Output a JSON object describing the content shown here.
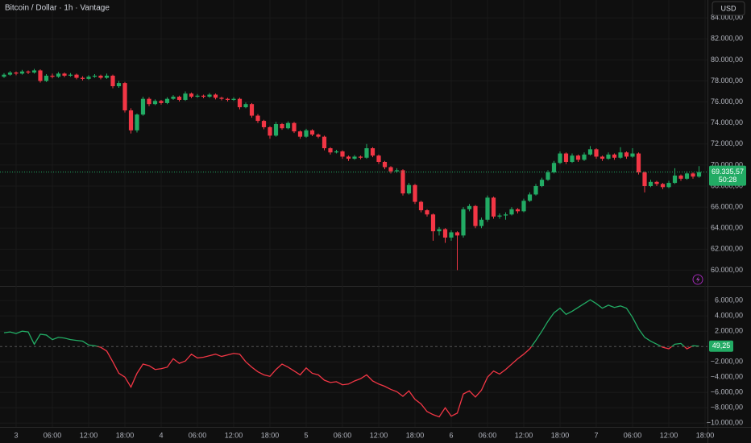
{
  "chart_data": [
    {
      "type": "candlestick",
      "title": "Bitcoin / Dollar · 1h · Vantage",
      "currency": "USD",
      "up_color": "#22ab64",
      "down_color": "#f23645",
      "grid": true,
      "ylim": [
        58500,
        85700
      ],
      "yticks": [
        {
          "value": 60000,
          "label": "60.000,00"
        },
        {
          "value": 62000,
          "label": "62.000,00"
        },
        {
          "value": 64000,
          "label": "64.000,00"
        },
        {
          "value": 66000,
          "label": "66.000,00"
        },
        {
          "value": 68000,
          "label": "68.000,00"
        },
        {
          "value": 70000,
          "label": "70.000,00"
        },
        {
          "value": 72000,
          "label": "72.000,00"
        },
        {
          "value": 74000,
          "label": "74.000,00"
        },
        {
          "value": 76000,
          "label": "76.000,00"
        },
        {
          "value": 78000,
          "label": "78.000,00"
        },
        {
          "value": 80000,
          "label": "80.000,00"
        },
        {
          "value": 82000,
          "label": "82.000,00"
        },
        {
          "value": 84000,
          "label": "84.000,00"
        }
      ],
      "last_price": {
        "value": 69335.57,
        "label": "69.335,57"
      },
      "countdown": "50:28",
      "ohlc": [
        [
          78400,
          78750,
          78300,
          78600
        ],
        [
          78600,
          78950,
          78500,
          78800
        ],
        [
          78800,
          78900,
          78550,
          78700
        ],
        [
          78700,
          79050,
          78600,
          78900
        ],
        [
          78900,
          79000,
          78650,
          78800
        ],
        [
          78800,
          79150,
          78700,
          79000
        ],
        [
          79000,
          79100,
          77850,
          78000
        ],
        [
          78000,
          78650,
          77900,
          78500
        ],
        [
          78500,
          78700,
          78250,
          78400
        ],
        [
          78400,
          78850,
          78300,
          78700
        ],
        [
          78700,
          78800,
          78350,
          78500
        ],
        [
          78500,
          78750,
          78400,
          78600
        ],
        [
          78600,
          78700,
          78150,
          78300
        ],
        [
          78300,
          78450,
          78050,
          78200
        ],
        [
          78200,
          78550,
          78100,
          78400
        ],
        [
          78400,
          78650,
          78300,
          78500
        ],
        [
          78500,
          78600,
          78150,
          78300
        ],
        [
          78300,
          78700,
          78200,
          78500
        ],
        [
          78500,
          78600,
          77300,
          77500
        ],
        [
          77500,
          78000,
          77350,
          77800
        ],
        [
          77800,
          77900,
          75000,
          75200
        ],
        [
          75200,
          75400,
          73000,
          73300
        ],
        [
          73300,
          74900,
          73100,
          74800
        ],
        [
          74800,
          76500,
          74700,
          76300
        ],
        [
          76300,
          76450,
          75600,
          75800
        ],
        [
          75800,
          76250,
          75700,
          76100
        ],
        [
          76100,
          76200,
          75750,
          75900
        ],
        [
          75900,
          76450,
          75800,
          76300
        ],
        [
          76300,
          76650,
          76200,
          76500
        ],
        [
          76500,
          76600,
          76050,
          76200
        ],
        [
          76200,
          77000,
          76100,
          76800
        ],
        [
          76800,
          76900,
          76350,
          76500
        ],
        [
          76500,
          76750,
          76400,
          76600
        ],
        [
          76600,
          76700,
          76350,
          76500
        ],
        [
          76500,
          76850,
          76400,
          76700
        ],
        [
          76700,
          76800,
          76250,
          76400
        ],
        [
          76400,
          76500,
          76150,
          76300
        ],
        [
          76300,
          76400,
          76050,
          76200
        ],
        [
          76200,
          76450,
          76100,
          76300
        ],
        [
          76300,
          76400,
          75300,
          75500
        ],
        [
          75500,
          75950,
          75400,
          75800
        ],
        [
          75800,
          75900,
          74500,
          74700
        ],
        [
          74700,
          74850,
          74000,
          74200
        ],
        [
          74200,
          74300,
          73400,
          73600
        ],
        [
          73600,
          73700,
          72500,
          72800
        ],
        [
          72800,
          74100,
          72700,
          73900
        ],
        [
          73900,
          74000,
          73350,
          73500
        ],
        [
          73500,
          74150,
          73400,
          74000
        ],
        [
          74000,
          74100,
          73050,
          73200
        ],
        [
          73200,
          73300,
          72500,
          72700
        ],
        [
          72700,
          73450,
          72600,
          73300
        ],
        [
          73300,
          73400,
          72750,
          72900
        ],
        [
          72900,
          73000,
          72550,
          72700
        ],
        [
          72700,
          72800,
          71400,
          71600
        ],
        [
          71600,
          71700,
          71000,
          71200
        ],
        [
          71200,
          71450,
          71100,
          71300
        ],
        [
          71300,
          71400,
          70600,
          70800
        ],
        [
          70800,
          70900,
          70400,
          70600
        ],
        [
          70600,
          70950,
          70500,
          70800
        ],
        [
          70800,
          70900,
          70550,
          70700
        ],
        [
          70700,
          72000,
          70600,
          71600
        ],
        [
          71600,
          71700,
          70750,
          70900
        ],
        [
          70900,
          71000,
          70100,
          70300
        ],
        [
          70300,
          70400,
          69600,
          69800
        ],
        [
          69800,
          69900,
          69200,
          69400
        ],
        [
          69400,
          69700,
          69250,
          69500
        ],
        [
          69500,
          69600,
          67100,
          67300
        ],
        [
          67300,
          68300,
          67200,
          68100
        ],
        [
          68100,
          68200,
          66300,
          66500
        ],
        [
          66500,
          66600,
          65500,
          65700
        ],
        [
          65700,
          65800,
          65100,
          65300
        ],
        [
          65300,
          65400,
          62800,
          63700
        ],
        [
          63700,
          64100,
          63300,
          63900
        ],
        [
          63900,
          64000,
          62600,
          63100
        ],
        [
          63100,
          63800,
          62800,
          63600
        ],
        [
          63600,
          63700,
          60000,
          63300
        ],
        [
          63300,
          66000,
          63100,
          65800
        ],
        [
          65800,
          66300,
          65600,
          66100
        ],
        [
          66100,
          66200,
          64000,
          64200
        ],
        [
          64200,
          65000,
          64000,
          64800
        ],
        [
          64800,
          67100,
          64600,
          66900
        ],
        [
          66900,
          67000,
          64900,
          65100
        ],
        [
          65100,
          65400,
          64900,
          65200
        ],
        [
          65200,
          65500,
          64800,
          65300
        ],
        [
          65300,
          66000,
          65200,
          65800
        ],
        [
          65800,
          65900,
          65400,
          65600
        ],
        [
          65600,
          66800,
          65500,
          66600
        ],
        [
          66600,
          67400,
          66500,
          67200
        ],
        [
          67200,
          68200,
          67100,
          68000
        ],
        [
          68000,
          68800,
          67900,
          68600
        ],
        [
          68600,
          69500,
          68500,
          69300
        ],
        [
          69300,
          70400,
          69200,
          70200
        ],
        [
          70200,
          71300,
          70100,
          71100
        ],
        [
          71100,
          71200,
          70100,
          70300
        ],
        [
          70300,
          71100,
          70200,
          70900
        ],
        [
          70900,
          71000,
          70300,
          70500
        ],
        [
          70500,
          71200,
          70400,
          71000
        ],
        [
          71000,
          71800,
          70900,
          71500
        ],
        [
          71500,
          71600,
          70600,
          70800
        ],
        [
          70800,
          70900,
          70400,
          70600
        ],
        [
          70600,
          71200,
          70500,
          71000
        ],
        [
          71000,
          71100,
          70500,
          70700
        ],
        [
          70700,
          71700,
          70600,
          71200
        ],
        [
          71200,
          71300,
          70600,
          70800
        ],
        [
          70800,
          71600,
          70700,
          71100
        ],
        [
          71100,
          71200,
          69100,
          69300
        ],
        [
          69300,
          69400,
          67400,
          68000
        ],
        [
          68000,
          68600,
          67900,
          68400
        ],
        [
          68400,
          68500,
          68000,
          68200
        ],
        [
          68200,
          68300,
          67700,
          67900
        ],
        [
          67900,
          68500,
          67800,
          68300
        ],
        [
          68300,
          69700,
          68200,
          69000
        ],
        [
          69000,
          69100,
          68500,
          68700
        ],
        [
          68700,
          69400,
          68600,
          69200
        ],
        [
          69200,
          69300,
          68700,
          68900
        ],
        [
          68900,
          69900,
          68800,
          69335.57
        ],
        null
      ]
    },
    {
      "type": "line",
      "positive_color": "#22ab64",
      "negative_color": "#f23645",
      "grid": true,
      "ylim": [
        -10500,
        7700
      ],
      "yticks": [
        {
          "value": 6000,
          "label": "6.000,00"
        },
        {
          "value": 4000,
          "label": "4.000,00"
        },
        {
          "value": 2000,
          "label": "2.000,00"
        },
        {
          "value": -2000,
          "label": "−2.000,00"
        },
        {
          "value": -4000,
          "label": "−4.000,00"
        },
        {
          "value": -6000,
          "label": "−6.000,00"
        },
        {
          "value": -8000,
          "label": "−8.000,00"
        },
        {
          "value": -10000,
          "label": "−10.000,00"
        }
      ],
      "last_value": {
        "value": 49.25,
        "label": "49,25"
      },
      "categories": [
        null,
        null,
        "3",
        null,
        null,
        null,
        null,
        null,
        "06:00",
        null,
        null,
        null,
        null,
        null,
        "12:00",
        null,
        null,
        null,
        null,
        null,
        "18:00",
        null,
        null,
        null,
        null,
        null,
        "4",
        null,
        null,
        null,
        null,
        null,
        "06:00",
        null,
        null,
        null,
        null,
        null,
        "12:00",
        null,
        null,
        null,
        null,
        null,
        "18:00",
        null,
        null,
        null,
        null,
        null,
        "5",
        null,
        null,
        null,
        null,
        null,
        "06:00",
        null,
        null,
        null,
        null,
        null,
        "12:00",
        null,
        null,
        null,
        null,
        null,
        "18:00",
        null,
        null,
        null,
        null,
        null,
        "6",
        null,
        null,
        null,
        null,
        null,
        "06:00",
        null,
        null,
        null,
        null,
        null,
        "12:00",
        null,
        null,
        null,
        null,
        null,
        "18:00",
        null,
        null,
        null,
        null,
        null,
        "7",
        null,
        null,
        null,
        null,
        null,
        "06:00",
        null,
        null,
        null,
        null,
        null,
        "12:00",
        null,
        null,
        null,
        null,
        null,
        "18:00"
      ],
      "values": [
        1800,
        1900,
        1700,
        2000,
        1900,
        300,
        1600,
        1500,
        900,
        1200,
        1100,
        900,
        800,
        700,
        200,
        100,
        -100,
        -600,
        -2000,
        -3500,
        -4000,
        -5300,
        -3500,
        -2300,
        -2500,
        -3000,
        -2900,
        -2700,
        -1600,
        -2200,
        -1900,
        -1000,
        -1500,
        -1400,
        -1200,
        -1000,
        -1300,
        -1100,
        -900,
        -1000,
        -2000,
        -2700,
        -3300,
        -3700,
        -3900,
        -3000,
        -2300,
        -2700,
        -3200,
        -3700,
        -2800,
        -3500,
        -3700,
        -4400,
        -4700,
        -4600,
        -5000,
        -4900,
        -4500,
        -4200,
        -3700,
        -4500,
        -4900,
        -5200,
        -5600,
        -5900,
        -6500,
        -5800,
        -6900,
        -7500,
        -8500,
        -8900,
        -9200,
        -8000,
        -9100,
        -8700,
        -6200,
        -5800,
        -6600,
        -5700,
        -4000,
        -3200,
        -3600,
        -3000,
        -2300,
        -1600,
        -1000,
        -300,
        800,
        2000,
        3300,
        4400,
        5000,
        4200,
        4600,
        5100,
        5600,
        6100,
        5600,
        5000,
        5400,
        5100,
        5300,
        5000,
        3800,
        2300,
        1200,
        700,
        300,
        -100,
        -300,
        300,
        400,
        -300,
        100,
        49.25,
        null
      ]
    }
  ]
}
